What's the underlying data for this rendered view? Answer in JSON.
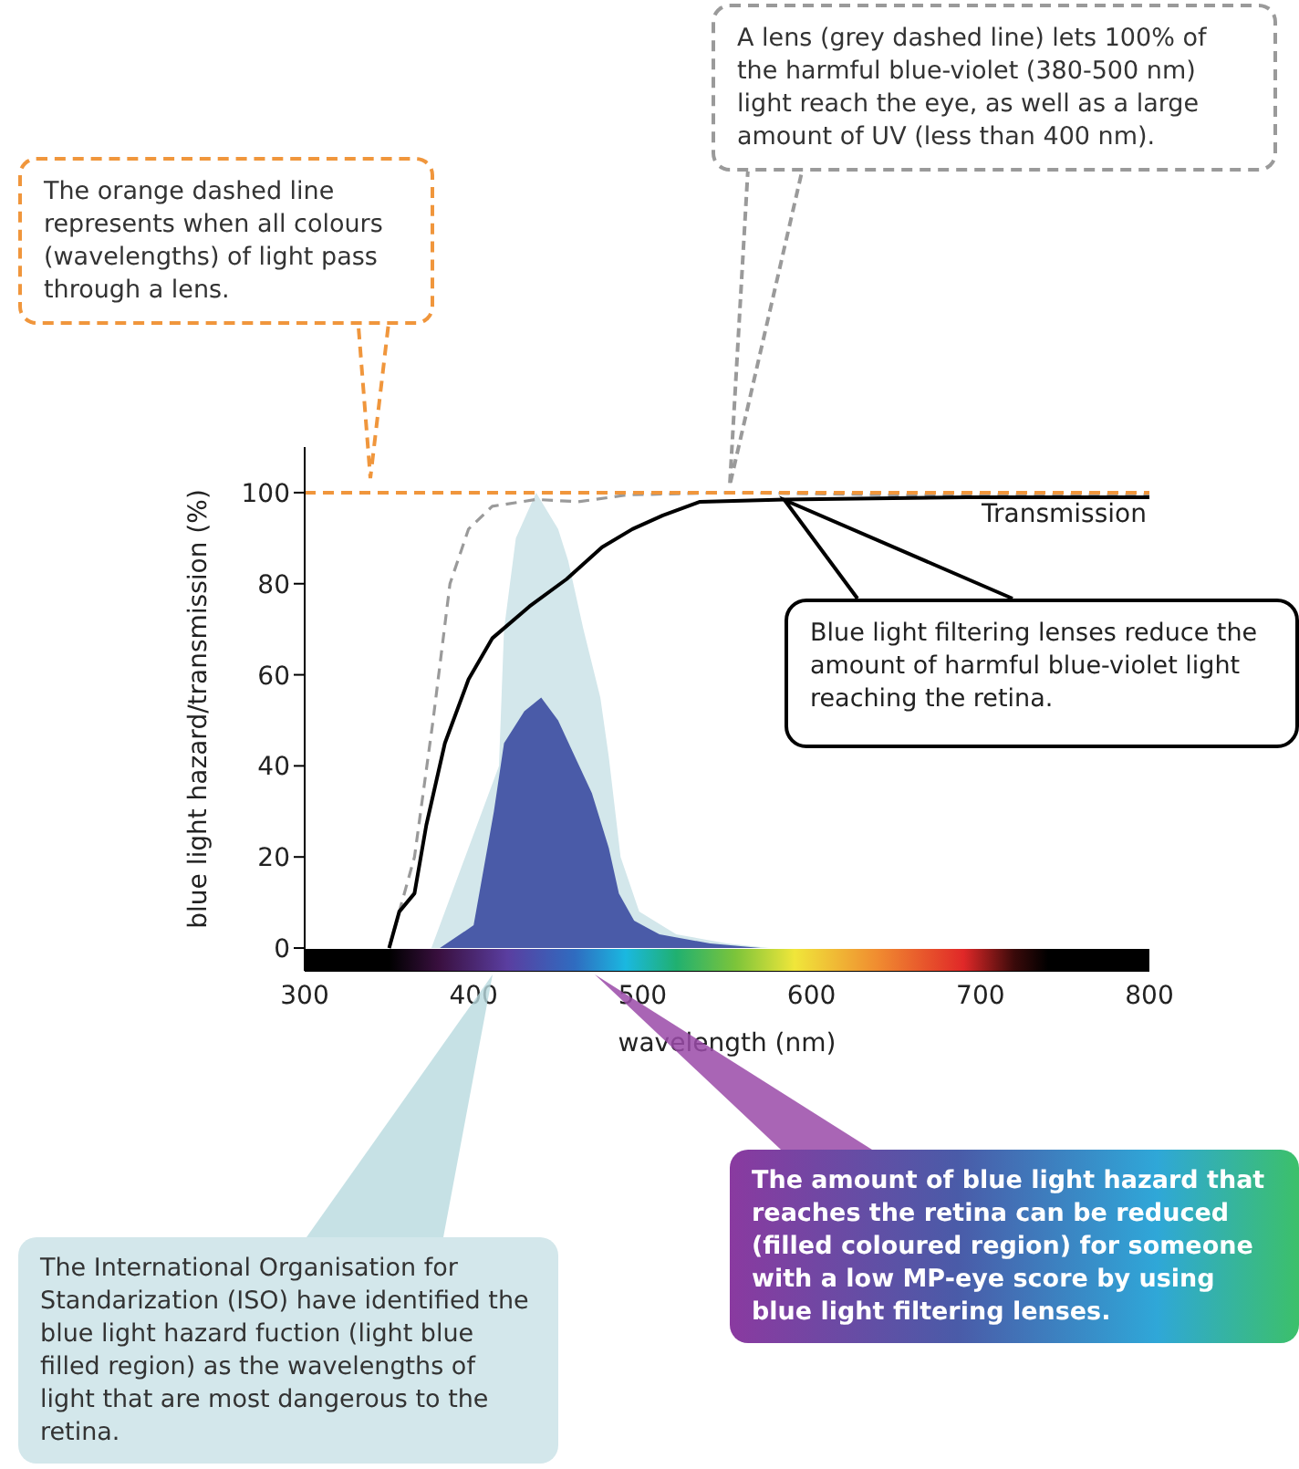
{
  "chart_data": {
    "type": "line",
    "xlabel": "wavelength (nm)",
    "ylabel": "blue light hazard/transmission (%)",
    "xlim": [
      300,
      800
    ],
    "xticks": [
      300,
      400,
      500,
      600,
      700,
      800
    ],
    "ylim": [
      -5,
      110
    ],
    "yticks": [
      0,
      20,
      40,
      60,
      80,
      100
    ],
    "grid": false,
    "legend": false,
    "marker": "none",
    "series": [
      {
        "type": "area",
        "color": "#d3e7eb",
        "x": [
          375,
          415,
          418,
          425,
          437,
          450,
          456,
          465,
          475,
          480,
          487,
          498,
          520,
          550,
          575
        ],
        "values": [
          0,
          40,
          70,
          90,
          100,
          92,
          85,
          70,
          55,
          42,
          20,
          8,
          3,
          1,
          0
        ]
      },
      {
        "type": "area",
        "color": "#4a5ba8",
        "x": [
          380,
          400,
          412,
          418,
          430,
          440,
          450,
          460,
          470,
          480,
          486,
          495,
          510,
          540,
          570
        ],
        "values": [
          0,
          5,
          30,
          45,
          52,
          55,
          50,
          42,
          34,
          22,
          12,
          6,
          3,
          1,
          0
        ]
      },
      {
        "color": "#9a9a9a",
        "line_style": "dashed",
        "x": [
          350,
          365,
          376,
          386,
          397,
          411,
          437,
          462,
          491,
          548,
          650,
          800
        ],
        "values": [
          0,
          20,
          50,
          80,
          92,
          97,
          98.5,
          98,
          99.5,
          100,
          99.5,
          99.5
        ]
      },
      {
        "color": "#000000",
        "line_style": "solid",
        "x": [
          350,
          356,
          365,
          372,
          383,
          397,
          411,
          433,
          455,
          476,
          494,
          512,
          534,
          584,
          692,
          800
        ],
        "values": [
          0,
          8,
          12,
          27,
          45,
          59,
          68,
          75,
          81,
          88,
          92,
          95,
          98,
          98.5,
          99,
          99
        ]
      }
    ],
    "ref_lines": [
      {
        "axis": "y",
        "value": 100,
        "color": "#f0963c",
        "line_style": "dashed"
      }
    ],
    "annotations": [
      "The orange dashed line represents when all colours (wavelengths) of light pass through a lens.",
      "A lens (grey dashed line) lets 100% of the harmful blue-violet (380-500 nm) light reach the eye, as well as a large amount of UV (less than 400 nm).",
      "Blue light filtering lenses reduce the amount of harmful blue-violet light reaching the retina.",
      "The amount of blue light hazard that reaches the retina can be reduced (filled coloured region) for someone with a low MP-eye score by using blue light filtering lenses.",
      "The International Organisation for Standarization (ISO) have identified the blue light hazard fuction (light blue filled region) as the wavelengths of light that are most dangerous to the retina.",
      "Transmission"
    ]
  }
}
